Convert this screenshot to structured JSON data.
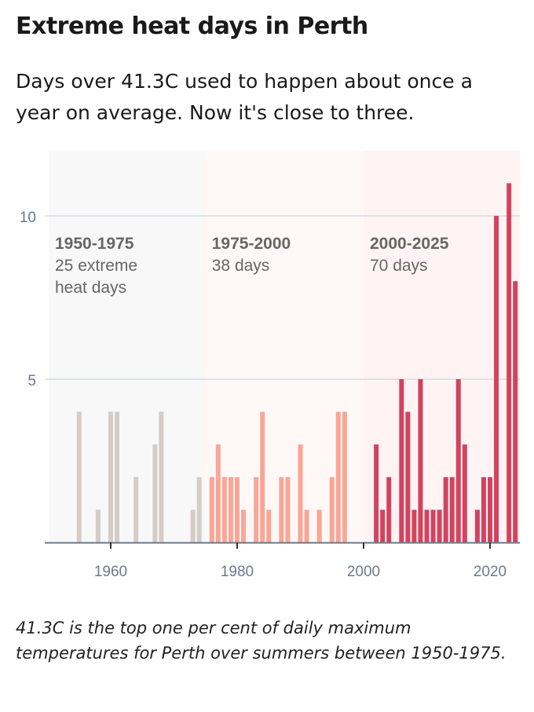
{
  "header": {
    "title": "Extreme heat days in Perth",
    "subtitle": "Days over 41.3C used to happen about once a year on average. Now it's close to three."
  },
  "caption": "41.3C is the top one per cent of daily maximum temperatures for Perth over summers between 1950-1975.",
  "chart_data": {
    "type": "bar",
    "title": "",
    "xlabel": "",
    "ylabel": "",
    "xlim": [
      1949.5,
      2025
    ],
    "ylim": [
      0,
      12
    ],
    "x_ticks": [
      "1960",
      "1980",
      "2000",
      "2020"
    ],
    "y_ticks": [
      "5",
      "10"
    ],
    "grid": "horizontal",
    "periods": [
      {
        "label": "1950-1975",
        "note": "25 extreme heat days",
        "note_lines": [
          "25 extreme",
          "heat days"
        ],
        "start": 1950,
        "end": 1975,
        "bar_color": "#d3ccc8",
        "bg_color": "#f8f8f8"
      },
      {
        "label": "1975-2000",
        "note": "38 days",
        "note_lines": [
          "38 days"
        ],
        "start": 1975,
        "end": 2000,
        "bar_color": "#f9a696",
        "bg_color": "#fff8f7"
      },
      {
        "label": "2000-2025",
        "note": "70 days",
        "note_lines": [
          "70 days"
        ],
        "start": 2000,
        "end": 2025,
        "bar_color": "#d1435f",
        "bg_color": "#fff3f3"
      }
    ],
    "x": [
      1955,
      1958,
      1960,
      1961,
      1964,
      1967,
      1968,
      1973,
      1974,
      1976,
      1977,
      1978,
      1979,
      1980,
      1981,
      1983,
      1984,
      1985,
      1987,
      1988,
      1990,
      1991,
      1993,
      1995,
      1996,
      1997,
      2002,
      2003,
      2004,
      2006,
      2007,
      2008,
      2009,
      2010,
      2011,
      2012,
      2013,
      2014,
      2015,
      2016,
      2018,
      2019,
      2020,
      2021,
      2023,
      2024
    ],
    "values": [
      4,
      1,
      4,
      4,
      2,
      3,
      4,
      1,
      2,
      2,
      3,
      2,
      2,
      2,
      1,
      2,
      4,
      1,
      2,
      2,
      3,
      1,
      1,
      2,
      4,
      4,
      3,
      1,
      2,
      5,
      4,
      1,
      5,
      1,
      1,
      1,
      2,
      2,
      5,
      3,
      1,
      2,
      2,
      10,
      11,
      8
    ]
  }
}
